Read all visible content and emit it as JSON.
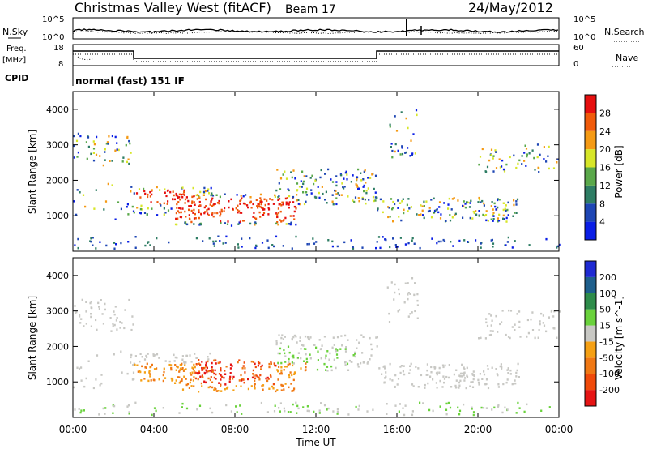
{
  "header": {
    "station": "Christmas Valley West (fitACF)",
    "beam": "Beam 17",
    "date": "24/May/2012"
  },
  "panels": {
    "nsky_label": "N.Sky",
    "nsearch_label": "N.Search",
    "nsky_ticks": [
      "10^5",
      "10^0"
    ],
    "nsearch_ticks": [
      "10^5",
      "10^0"
    ],
    "freq_label": "Freq.",
    "freq_unit": "[MHz]",
    "freq_ticks": [
      "18",
      "8"
    ],
    "nave_label": "Nave",
    "nave_ticks": [
      "60",
      "0"
    ],
    "cpid_label": "CPID",
    "cpid_text": "normal (fast) 151 IF"
  },
  "chart_data": [
    {
      "type": "heatmap",
      "title": "",
      "xlabel": "Time UT",
      "ylabel": "Slant Range [km]",
      "x_ticks": [
        "00:00",
        "04:00",
        "08:00",
        "12:00",
        "16:00",
        "20:00",
        "00:00"
      ],
      "x_hours": [
        0,
        4,
        8,
        12,
        16,
        20,
        24
      ],
      "y_ticks": [
        1000,
        2000,
        3000,
        4000
      ],
      "ylim": [
        0,
        4500
      ],
      "colorbar": {
        "label": "Power [dB]",
        "levels": [
          4,
          8,
          12,
          16,
          20,
          24,
          28
        ],
        "colors": [
          "#0a1ee6",
          "#1e46b4",
          "#2e7d64",
          "#5aa84a",
          "#d7e628",
          "#f59a14",
          "#f05a0a",
          "#e60f0f"
        ]
      }
    },
    {
      "type": "heatmap",
      "title": "",
      "xlabel": "Time UT",
      "ylabel": "Slant Range [km]",
      "x_ticks": [
        "00:00",
        "04:00",
        "08:00",
        "12:00",
        "16:00",
        "20:00",
        "00:00"
      ],
      "x_hours": [
        0,
        4,
        8,
        12,
        16,
        20,
        24
      ],
      "y_ticks": [
        1000,
        2000,
        3000,
        4000
      ],
      "ylim": [
        0,
        4500
      ],
      "colorbar": {
        "label": "Velocity [m s^-1]",
        "levels": [
          200,
          100,
          50,
          15,
          -15,
          -50,
          -100,
          -200
        ],
        "colors": [
          "#1e2ad2",
          "#1e5f8c",
          "#2e8c4a",
          "#6ad23c",
          "#c8c8c4",
          "#f5a014",
          "#f07814",
          "#f04a0a",
          "#e61414"
        ]
      }
    }
  ]
}
